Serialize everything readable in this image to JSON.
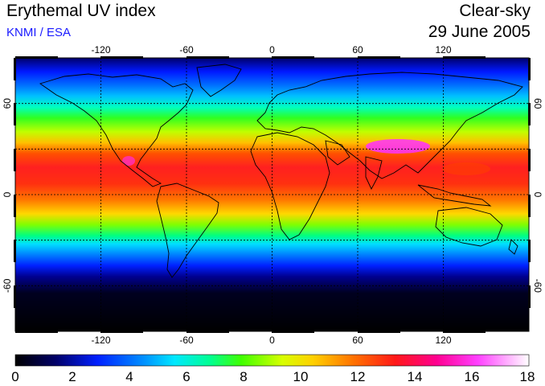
{
  "header": {
    "title": "Erythemal UV index",
    "credit": "KNMI / ESA",
    "condition": "Clear-sky",
    "date": "29 June 2005"
  },
  "map": {
    "lon_ticks": [
      "-120",
      "-60",
      "0",
      "60",
      "120"
    ],
    "lat_ticks_left": [
      "60",
      "0",
      "-60"
    ],
    "lat_ticks_right": [
      "60",
      "0",
      "-60"
    ],
    "lon_range": [
      -180,
      180
    ],
    "lat_range": [
      -90,
      90
    ],
    "gridlines": "dotted every 30 degrees"
  },
  "colorbar": {
    "labels": [
      "0",
      "2",
      "4",
      "6",
      "8",
      "10",
      "12",
      "14",
      "16",
      "18"
    ],
    "range": [
      0,
      18
    ],
    "colors": [
      "#000000",
      "#00006a",
      "#0020ff",
      "#0090ff",
      "#00e8ff",
      "#00ff90",
      "#40ff00",
      "#d8ff00",
      "#ffd000",
      "#ff7000",
      "#ff1818",
      "#ff0090",
      "#ff40ff",
      "#ffffff"
    ]
  }
}
